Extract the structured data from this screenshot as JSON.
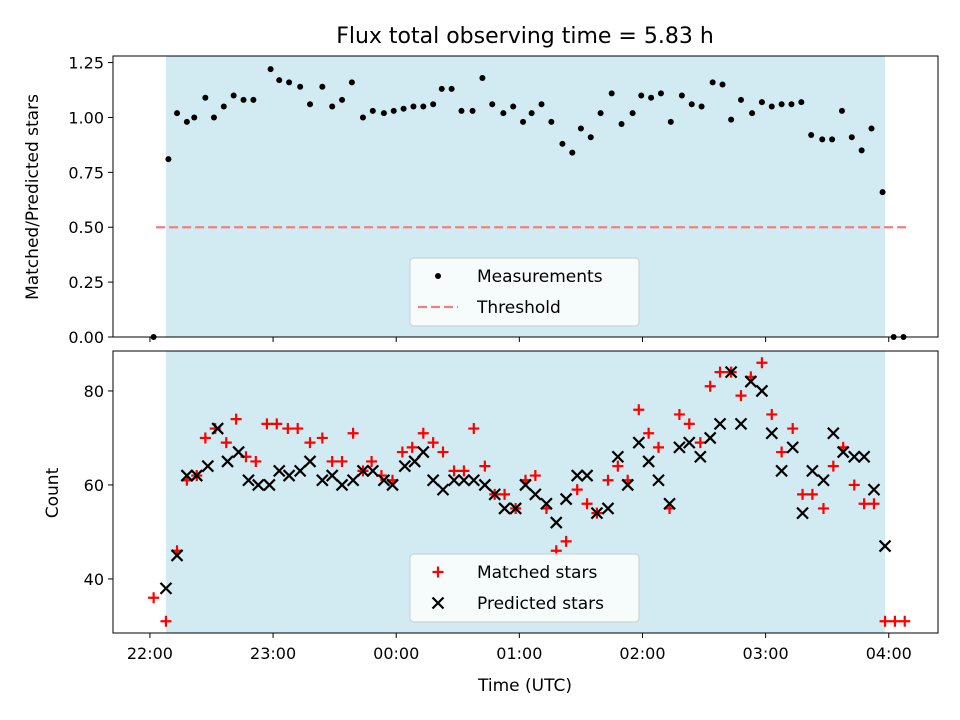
{
  "chart_data": [
    {
      "type": "scatter",
      "title": "Flux total observing time = 5.83 h",
      "xlabel": "",
      "ylabel": "Matched/Predicted stars",
      "x_unit": "hours UTC (22 = 22:00, 24 = 00:00, 28 = 04:00)",
      "xlim": [
        21.7,
        28.4
      ],
      "ylim": [
        0,
        1.28
      ],
      "y_ticks": [
        "0.00",
        "0.25",
        "0.50",
        "0.75",
        "1.00",
        "1.25"
      ],
      "y_tick_values": [
        0,
        0.25,
        0.5,
        0.75,
        1.0,
        1.25
      ],
      "shaded_span": [
        22.13,
        27.97
      ],
      "shade_color": "#add8e6",
      "grid": false,
      "legend": {
        "placement": "lower center",
        "entries": [
          "Measurements",
          "Threshold"
        ]
      },
      "series": [
        {
          "name": "Measurements",
          "style": "points",
          "color": "#000000",
          "points": [
            [
              22.03,
              0.0
            ],
            [
              22.15,
              0.81
            ],
            [
              22.22,
              1.02
            ],
            [
              22.3,
              0.98
            ],
            [
              22.36,
              1.0
            ],
            [
              22.45,
              1.09
            ],
            [
              22.52,
              1.0
            ],
            [
              22.6,
              1.05
            ],
            [
              22.68,
              1.1
            ],
            [
              22.76,
              1.08
            ],
            [
              22.84,
              1.08
            ],
            [
              22.98,
              1.22
            ],
            [
              23.05,
              1.17
            ],
            [
              23.13,
              1.16
            ],
            [
              23.22,
              1.14
            ],
            [
              23.3,
              1.06
            ],
            [
              23.4,
              1.14
            ],
            [
              23.48,
              1.05
            ],
            [
              23.56,
              1.08
            ],
            [
              23.64,
              1.16
            ],
            [
              23.73,
              1.0
            ],
            [
              23.81,
              1.03
            ],
            [
              23.9,
              1.02
            ],
            [
              23.98,
              1.03
            ],
            [
              24.06,
              1.04
            ],
            [
              24.14,
              1.05
            ],
            [
              24.22,
              1.05
            ],
            [
              24.3,
              1.06
            ],
            [
              24.37,
              1.13
            ],
            [
              24.45,
              1.13
            ],
            [
              24.53,
              1.03
            ],
            [
              24.62,
              1.03
            ],
            [
              24.7,
              1.18
            ],
            [
              24.78,
              1.06
            ],
            [
              24.87,
              1.02
            ],
            [
              24.95,
              1.05
            ],
            [
              25.03,
              0.98
            ],
            [
              25.1,
              1.02
            ],
            [
              25.18,
              1.06
            ],
            [
              25.26,
              0.98
            ],
            [
              25.35,
              0.88
            ],
            [
              25.43,
              0.84
            ],
            [
              25.5,
              0.95
            ],
            [
              25.58,
              0.91
            ],
            [
              25.66,
              1.02
            ],
            [
              25.75,
              1.11
            ],
            [
              25.83,
              0.97
            ],
            [
              25.92,
              1.02
            ],
            [
              25.99,
              1.1
            ],
            [
              26.07,
              1.09
            ],
            [
              26.15,
              1.11
            ],
            [
              26.23,
              0.98
            ],
            [
              26.32,
              1.1
            ],
            [
              26.4,
              1.06
            ],
            [
              26.48,
              1.05
            ],
            [
              26.57,
              1.16
            ],
            [
              26.65,
              1.15
            ],
            [
              26.72,
              0.99
            ],
            [
              26.8,
              1.08
            ],
            [
              26.89,
              1.02
            ],
            [
              26.97,
              1.07
            ],
            [
              27.05,
              1.05
            ],
            [
              27.13,
              1.06
            ],
            [
              27.21,
              1.06
            ],
            [
              27.29,
              1.07
            ],
            [
              27.37,
              0.92
            ],
            [
              27.46,
              0.9
            ],
            [
              27.54,
              0.9
            ],
            [
              27.62,
              1.03
            ],
            [
              27.7,
              0.91
            ],
            [
              27.78,
              0.85
            ],
            [
              27.86,
              0.95
            ],
            [
              27.95,
              0.66
            ],
            [
              28.04,
              0.0
            ],
            [
              28.12,
              0.0
            ]
          ]
        },
        {
          "name": "Threshold",
          "style": "dashed-line",
          "color": "#f08080",
          "points": [
            [
              22.05,
              0.5
            ],
            [
              28.15,
              0.5
            ]
          ]
        }
      ]
    },
    {
      "type": "scatter",
      "title": "",
      "xlabel": "Time (UTC)",
      "ylabel": "Count",
      "x_unit": "hours UTC (22 = 22:00, 24 = 00:00, 28 = 04:00)",
      "xlim": [
        21.7,
        28.4
      ],
      "ylim": [
        28.5,
        88.5
      ],
      "x_ticks": [
        "22:00",
        "23:00",
        "00:00",
        "01:00",
        "02:00",
        "03:00",
        "04:00"
      ],
      "x_tick_values": [
        22,
        23,
        24,
        25,
        26,
        27,
        28
      ],
      "y_ticks": [
        "40",
        "60",
        "80"
      ],
      "y_tick_values": [
        40,
        60,
        80
      ],
      "shaded_span": [
        22.13,
        27.97
      ],
      "shade_color": "#add8e6",
      "grid": false,
      "legend": {
        "placement": "lower center",
        "entries": [
          "Matched stars",
          "Predicted stars"
        ]
      },
      "series": [
        {
          "name": "Matched stars",
          "marker": "plus",
          "color": "#ff0000",
          "points": [
            [
              22.03,
              36
            ],
            [
              22.13,
              31
            ],
            [
              22.22,
              46
            ],
            [
              22.3,
              61
            ],
            [
              22.38,
              62
            ],
            [
              22.45,
              70
            ],
            [
              22.53,
              72
            ],
            [
              22.62,
              69
            ],
            [
              22.7,
              74
            ],
            [
              22.78,
              66
            ],
            [
              22.86,
              65
            ],
            [
              22.95,
              73
            ],
            [
              23.03,
              73
            ],
            [
              23.12,
              72
            ],
            [
              23.2,
              72
            ],
            [
              23.3,
              69
            ],
            [
              23.4,
              70
            ],
            [
              23.48,
              65
            ],
            [
              23.56,
              65
            ],
            [
              23.65,
              71
            ],
            [
              23.73,
              63
            ],
            [
              23.8,
              65
            ],
            [
              23.88,
              62
            ],
            [
              23.97,
              61
            ],
            [
              24.05,
              67
            ],
            [
              24.13,
              68
            ],
            [
              24.22,
              71
            ],
            [
              24.3,
              69
            ],
            [
              24.38,
              67
            ],
            [
              24.47,
              63
            ],
            [
              24.55,
              63
            ],
            [
              24.63,
              72
            ],
            [
              24.72,
              64
            ],
            [
              24.8,
              58
            ],
            [
              24.88,
              58
            ],
            [
              24.97,
              55
            ],
            [
              25.05,
              61
            ],
            [
              25.13,
              62
            ],
            [
              25.22,
              55
            ],
            [
              25.3,
              46
            ],
            [
              25.38,
              48
            ],
            [
              25.47,
              59
            ],
            [
              25.55,
              56
            ],
            [
              25.63,
              54
            ],
            [
              25.72,
              61
            ],
            [
              25.8,
              64
            ],
            [
              25.88,
              61
            ],
            [
              25.97,
              76
            ],
            [
              26.05,
              71
            ],
            [
              26.13,
              68
            ],
            [
              26.22,
              55
            ],
            [
              26.3,
              75
            ],
            [
              26.38,
              73
            ],
            [
              26.47,
              69
            ],
            [
              26.55,
              81
            ],
            [
              26.63,
              84
            ],
            [
              26.72,
              84
            ],
            [
              26.8,
              79
            ],
            [
              26.88,
              83
            ],
            [
              26.97,
              86
            ],
            [
              27.05,
              75
            ],
            [
              27.13,
              67
            ],
            [
              27.22,
              72
            ],
            [
              27.3,
              58
            ],
            [
              27.38,
              58
            ],
            [
              27.47,
              55
            ],
            [
              27.55,
              64
            ],
            [
              27.63,
              68
            ],
            [
              27.72,
              60
            ],
            [
              27.8,
              56
            ],
            [
              27.88,
              56
            ],
            [
              27.97,
              31
            ],
            [
              28.05,
              31
            ],
            [
              28.13,
              31
            ]
          ]
        },
        {
          "name": "Predicted stars",
          "marker": "x",
          "color": "#000000",
          "points": [
            [
              22.13,
              38
            ],
            [
              22.22,
              45
            ],
            [
              22.3,
              62
            ],
            [
              22.38,
              62
            ],
            [
              22.47,
              64
            ],
            [
              22.55,
              72
            ],
            [
              22.63,
              65
            ],
            [
              22.72,
              67
            ],
            [
              22.8,
              61
            ],
            [
              22.88,
              60
            ],
            [
              22.97,
              60
            ],
            [
              23.05,
              63
            ],
            [
              23.13,
              62
            ],
            [
              23.22,
              63
            ],
            [
              23.3,
              65
            ],
            [
              23.4,
              61
            ],
            [
              23.48,
              62
            ],
            [
              23.56,
              60
            ],
            [
              23.65,
              61
            ],
            [
              23.73,
              63
            ],
            [
              23.81,
              63
            ],
            [
              23.9,
              61
            ],
            [
              23.97,
              60
            ],
            [
              24.07,
              64
            ],
            [
              24.15,
              65
            ],
            [
              24.22,
              67
            ],
            [
              24.3,
              61
            ],
            [
              24.38,
              59
            ],
            [
              24.47,
              61
            ],
            [
              24.55,
              61
            ],
            [
              24.63,
              61
            ],
            [
              24.72,
              60
            ],
            [
              24.8,
              58
            ],
            [
              24.88,
              55
            ],
            [
              24.97,
              55
            ],
            [
              25.05,
              60
            ],
            [
              25.13,
              58
            ],
            [
              25.22,
              56
            ],
            [
              25.3,
              52
            ],
            [
              25.38,
              57
            ],
            [
              25.47,
              62
            ],
            [
              25.55,
              62
            ],
            [
              25.63,
              54
            ],
            [
              25.72,
              55
            ],
            [
              25.8,
              66
            ],
            [
              25.88,
              60
            ],
            [
              25.97,
              69
            ],
            [
              26.05,
              65
            ],
            [
              26.13,
              61
            ],
            [
              26.22,
              56
            ],
            [
              26.3,
              68
            ],
            [
              26.38,
              69
            ],
            [
              26.47,
              66
            ],
            [
              26.55,
              70
            ],
            [
              26.63,
              73
            ],
            [
              26.72,
              84
            ],
            [
              26.8,
              73
            ],
            [
              26.88,
              82
            ],
            [
              26.97,
              80
            ],
            [
              27.05,
              71
            ],
            [
              27.13,
              63
            ],
            [
              27.22,
              68
            ],
            [
              27.3,
              54
            ],
            [
              27.38,
              63
            ],
            [
              27.47,
              61
            ],
            [
              27.55,
              71
            ],
            [
              27.63,
              67
            ],
            [
              27.72,
              66
            ],
            [
              27.8,
              66
            ],
            [
              27.88,
              59
            ],
            [
              27.97,
              47
            ]
          ]
        }
      ]
    }
  ]
}
